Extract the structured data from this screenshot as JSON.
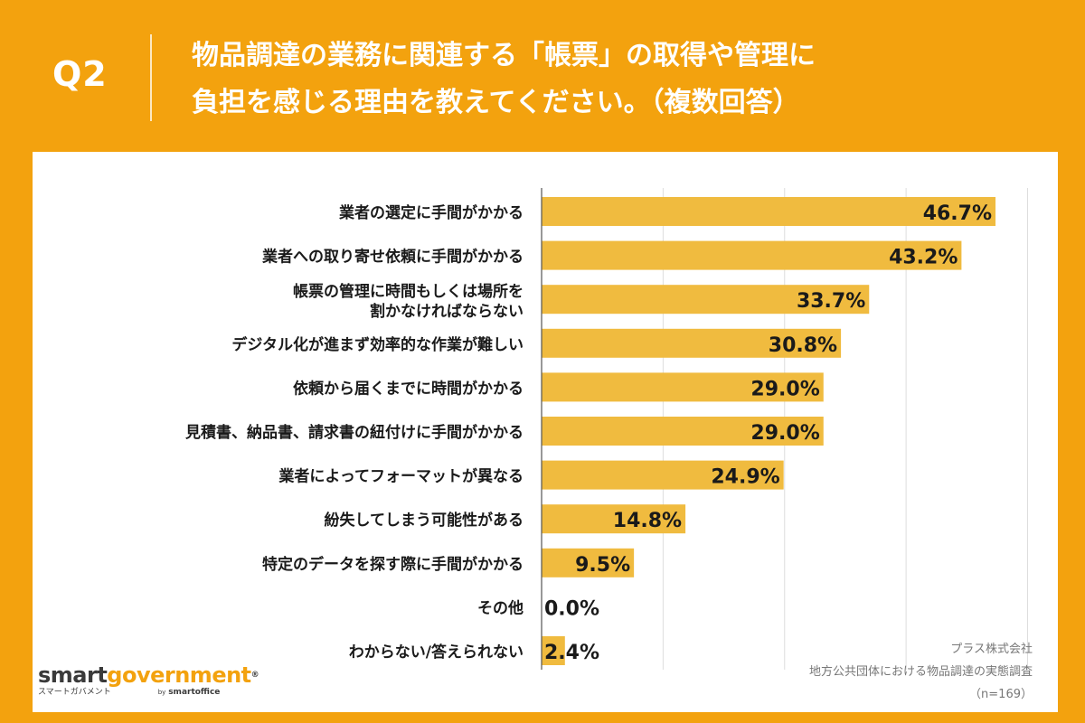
{
  "header": {
    "q_label": "Q2",
    "title_line1": "物品調達の業務に関連する「帳票」の取得や管理に",
    "title_line2": "負担を感じる理由を教えてください。（複数回答）"
  },
  "colors": {
    "background": "#f3a20e",
    "bar": "#f0bb3f",
    "text": "#1a1a1a",
    "panel": "#ffffff"
  },
  "chart_data": {
    "type": "bar",
    "orientation": "horizontal",
    "categories": [
      [
        "業者の選定に手間がかかる"
      ],
      [
        "業者への取り寄せ依頼に手間がかかる"
      ],
      [
        "帳票の管理に時間もしくは場所を",
        "割かなければならない"
      ],
      [
        "デジタル化が進まず効率的な作業が難しい"
      ],
      [
        "依頼から届くまでに時間がかかる"
      ],
      [
        "見積書、納品書、請求書の紐付けに手間がかかる"
      ],
      [
        "業者によってフォーマットが異なる"
      ],
      [
        "紛失してしまう可能性がある"
      ],
      [
        "特定のデータを探す際に手間がかかる"
      ],
      [
        "その他"
      ],
      [
        "わからない/答えられない"
      ]
    ],
    "values": [
      46.7,
      43.2,
      33.7,
      30.8,
      29.0,
      29.0,
      24.9,
      14.8,
      9.5,
      0.0,
      2.4
    ],
    "value_labels": [
      "46.7%",
      "43.2%",
      "33.7%",
      "30.8%",
      "29.0%",
      "29.0%",
      "24.9%",
      "14.8%",
      "9.5%",
      "0.0%",
      "2.4%"
    ],
    "xlim": [
      0,
      50
    ],
    "grid": true
  },
  "source": {
    "company": "プラス株式会社",
    "survey": "地方公共団体における物品調達の実態調査",
    "n": "（n=169）"
  },
  "logo": {
    "smart": "smart",
    "government": "government",
    "registered": "®",
    "sub_ja": "スマートガバメント",
    "by": "by",
    "brand": "smartoffice"
  }
}
